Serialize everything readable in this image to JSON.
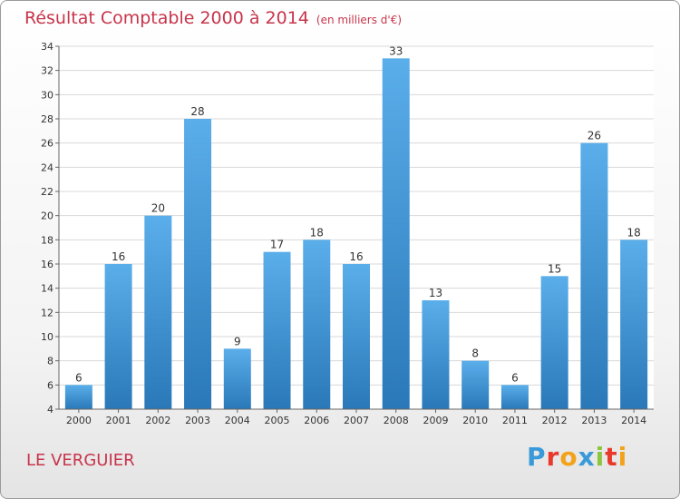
{
  "header": {
    "title": "Résultat Comptable 2000 à 2014",
    "subtitle": "(en milliers d'€)"
  },
  "footer": {
    "commune": "LE VERGUIER",
    "logo_text": "Proxiti",
    "logo_colors": [
      "#3a9ad9",
      "#e9392c",
      "#f3a21b",
      "#3a9ad9",
      "#8cc63f",
      "#e9392c",
      "#f3a21b"
    ]
  },
  "chart_data": {
    "type": "bar",
    "title": "Résultat Comptable 2000 à 2014",
    "subtitle": "(en milliers d'€)",
    "xlabel": "",
    "ylabel": "",
    "categories": [
      "2000",
      "2001",
      "2002",
      "2003",
      "2004",
      "2005",
      "2006",
      "2007",
      "2008",
      "2009",
      "2010",
      "2011",
      "2012",
      "2013",
      "2014"
    ],
    "values": [
      6,
      16,
      20,
      28,
      9,
      17,
      18,
      16,
      33,
      13,
      8,
      6,
      15,
      26,
      18
    ],
    "ylim": [
      4,
      34
    ],
    "yticks": [
      4,
      6,
      8,
      10,
      12,
      14,
      16,
      18,
      20,
      22,
      24,
      26,
      28,
      30,
      32,
      34
    ],
    "grid": true,
    "bar_color_top": "#5aaeea",
    "bar_color_bottom": "#2a78b8"
  }
}
